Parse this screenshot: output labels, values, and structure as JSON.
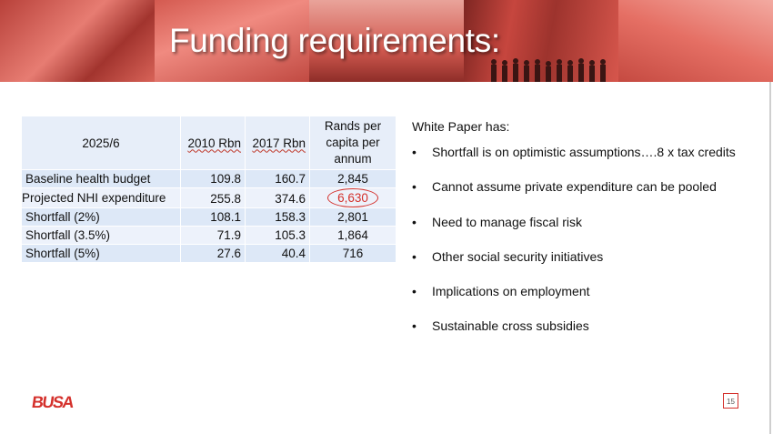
{
  "slide": {
    "title": "Funding requirements:",
    "page_number": "15",
    "logo_text": "BUSA",
    "accent_color": "#d4302b"
  },
  "table": {
    "headers": [
      "2025/6",
      "2010 Rbn",
      "2017 Rbn",
      "Rands per capita per annum"
    ],
    "rows": [
      {
        "label": "Baseline health budget",
        "v2010": "109.8",
        "v2017": "160.7",
        "per_capita": "2,845"
      },
      {
        "label": "Projected NHI expenditure",
        "v2010": "255.8",
        "v2017": "374.6",
        "per_capita": "6,630",
        "highlighted": true
      },
      {
        "label": "Shortfall (2%)",
        "v2010": "108.1",
        "v2017": "158.3",
        "per_capita": "2,801"
      },
      {
        "label": "Shortfall (3.5%)",
        "v2010": "71.9",
        "v2017": "105.3",
        "per_capita": "1,864"
      },
      {
        "label": "Shortfall (5%)",
        "v2010": "27.6",
        "v2017": "40.4",
        "per_capita": "716"
      }
    ]
  },
  "white_paper": {
    "intro": "White Paper has:",
    "bullets": [
      "Shortfall is on optimistic assumptions….8 x tax credits",
      "Cannot assume private expenditure can be pooled",
      "Need to manage fiscal risk",
      "Other social security initiatives",
      "Implications on employment",
      "Sustainable cross subsidies"
    ]
  }
}
